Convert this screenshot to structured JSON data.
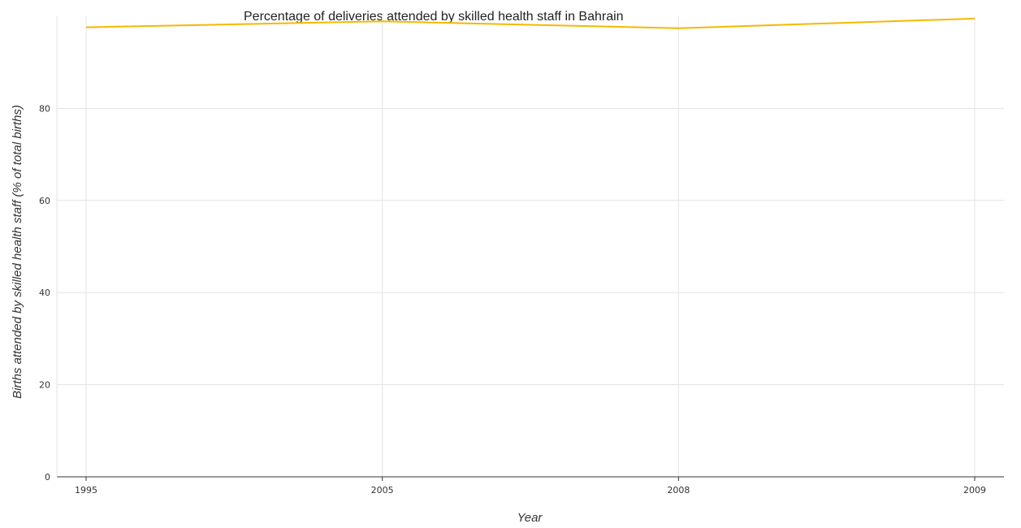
{
  "chart_data": {
    "type": "line",
    "title": "Percentage of deliveries attended by skilled health staff in Bahrain",
    "xlabel": "Year",
    "ylabel": "Births attended by skilled health staff (% of total births)",
    "categories": [
      "1995",
      "2005",
      "2008",
      "2009"
    ],
    "series": [
      {
        "values": [
          97.6,
          98.9,
          97.4,
          99.5
        ]
      }
    ],
    "yticks": [
      "0",
      "20",
      "40",
      "60",
      "80"
    ],
    "ylim": [
      0,
      100
    ],
    "grid": true,
    "colors": {
      "line": "#f5b800"
    }
  }
}
